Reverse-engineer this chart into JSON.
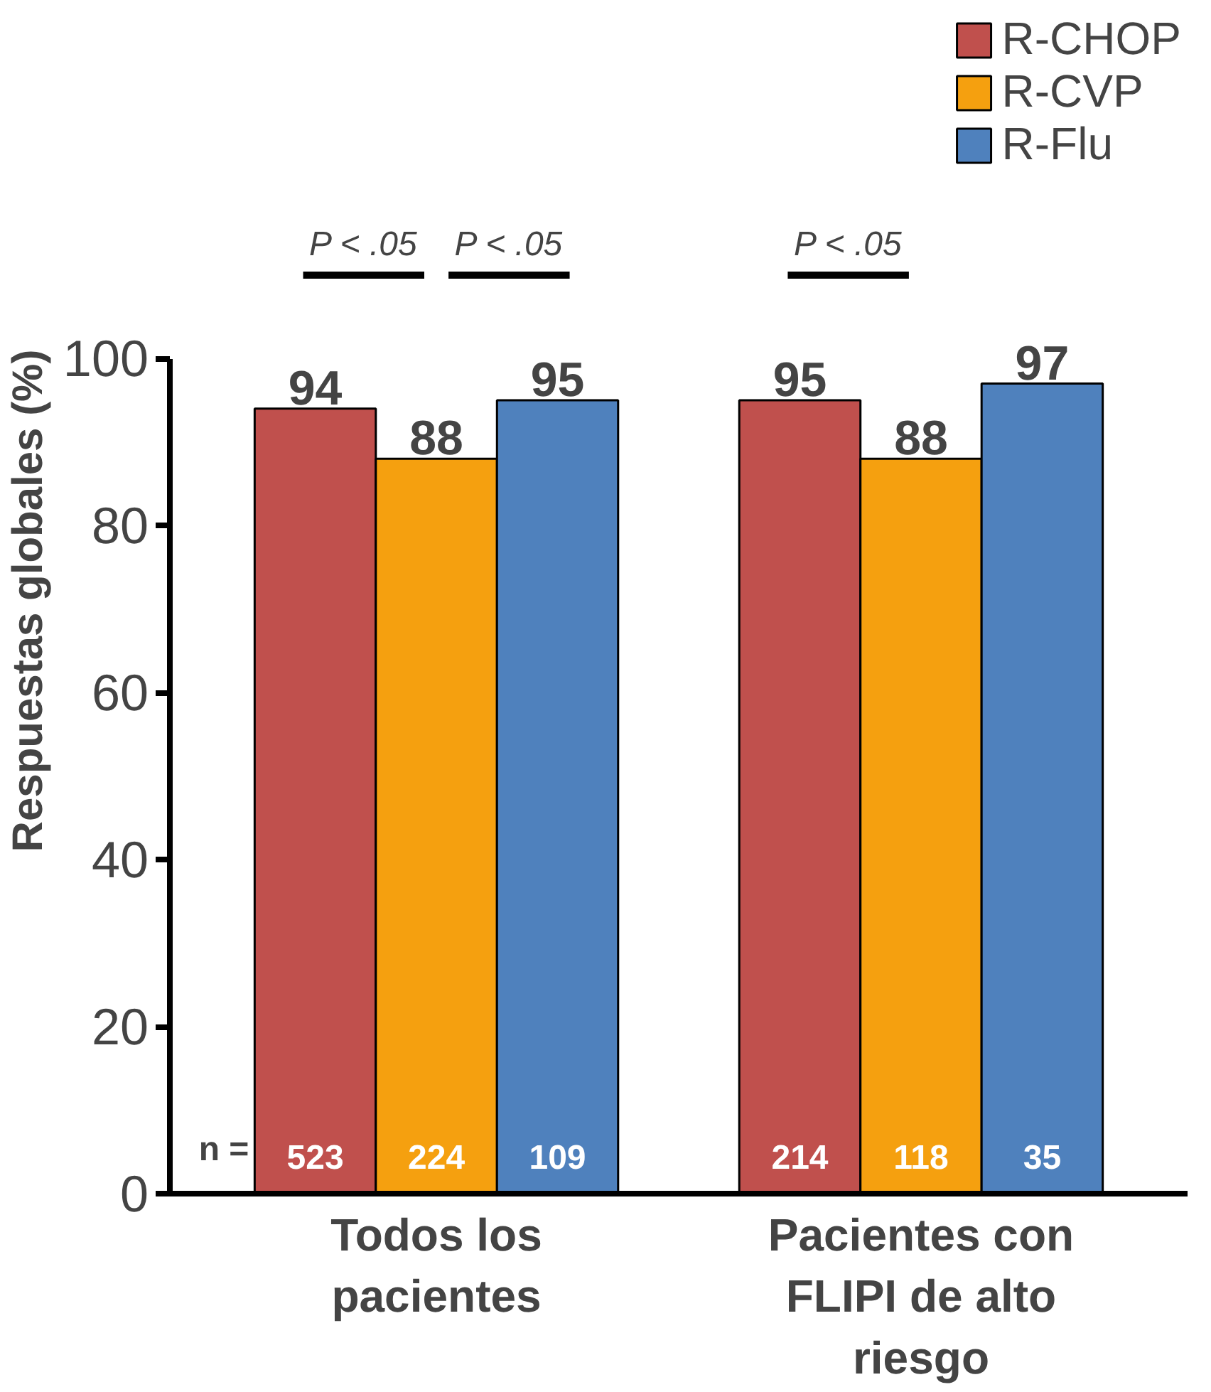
{
  "chart_data": {
    "type": "bar",
    "ylabel": "Respuestas globales (%)",
    "categories": [
      "Todos los pacientes",
      "Pacientes con FLIPI de alto riesgo"
    ],
    "series": [
      {
        "name": "R-CHOP",
        "color": "#c0504d",
        "values": [
          94,
          95
        ]
      },
      {
        "name": "R-CVP",
        "color": "#f5a00f",
        "values": [
          88,
          88
        ]
      },
      {
        "name": "R-Flu",
        "color": "#4f81bd",
        "values": [
          95,
          97
        ]
      }
    ],
    "ylim": [
      0,
      100
    ],
    "yticks": [
      0,
      20,
      40,
      60,
      80,
      100
    ],
    "data_labels": true,
    "grid": false,
    "legend": "top right",
    "annotations": [
      "P < .05",
      "P < .05",
      "P < .05",
      "n =",
      "523",
      "224",
      "109",
      "214",
      "118",
      "35"
    ]
  }
}
